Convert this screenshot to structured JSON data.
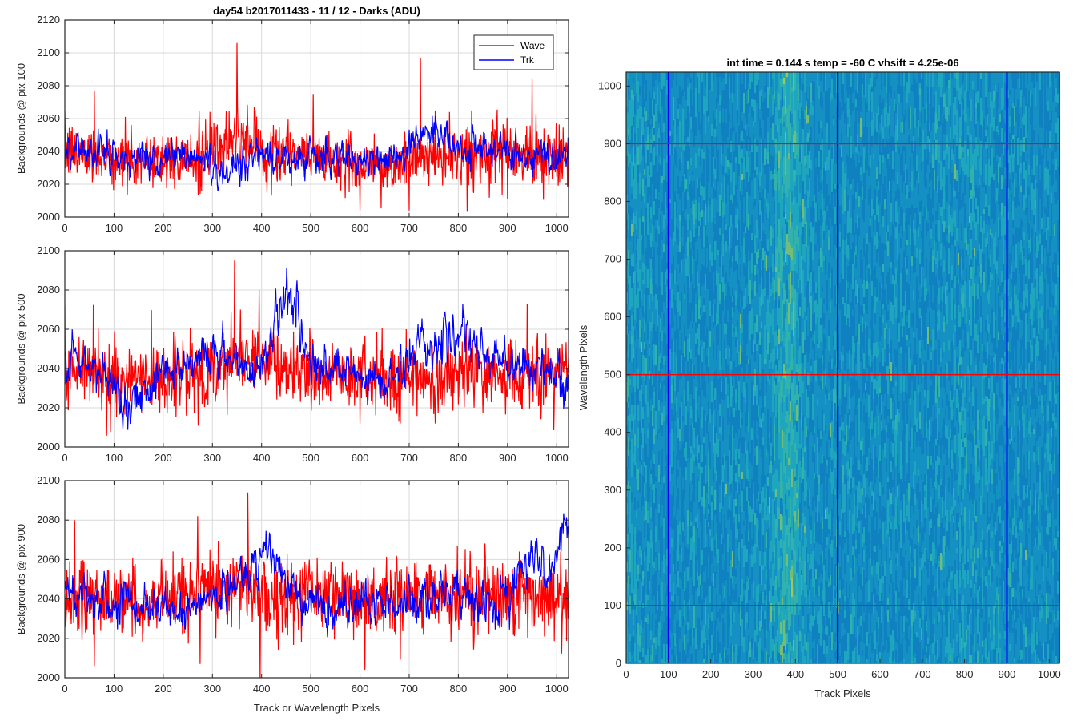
{
  "chart_data": [
    {
      "type": "line",
      "title": "day54 b2017011433 - 11 / 12 - Darks (ADU)",
      "xlabel": "",
      "ylabel": "Backgrounds @ pix 100",
      "xlim": [
        0,
        1024
      ],
      "ylim": [
        2000,
        2120
      ],
      "xticks": [
        0,
        100,
        200,
        300,
        400,
        500,
        600,
        700,
        800,
        900,
        1000
      ],
      "yticks": [
        2000,
        2020,
        2040,
        2060,
        2080,
        2100,
        2120
      ],
      "grid": true,
      "legend_position": "top-right",
      "series": [
        {
          "name": "Wave",
          "color": "#ff0000",
          "x": [
            0,
            40,
            80,
            120,
            160,
            200,
            240,
            280,
            320,
            345,
            355,
            380,
            420,
            460,
            500,
            540,
            580,
            620,
            660,
            700,
            720,
            740,
            780,
            820,
            860,
            900,
            940,
            980,
            1024
          ],
          "y": [
            2040,
            2038,
            2037,
            2035,
            2034,
            2036,
            2035,
            2037,
            2042,
            2045,
            2048,
            2044,
            2040,
            2038,
            2036,
            2035,
            2034,
            2032,
            2030,
            2034,
            2038,
            2036,
            2037,
            2038,
            2037,
            2038,
            2036,
            2037,
            2038
          ],
          "peaks": [
            [
              350,
              2106
            ],
            [
              723,
              2097
            ],
            [
              950,
              2084
            ],
            [
              60,
              2077
            ],
            [
              505,
              2075
            ],
            [
              600,
              2004
            ],
            [
              700,
              2004
            ]
          ]
        },
        {
          "name": "Trk",
          "color": "#0000ff",
          "x": [
            0,
            40,
            80,
            120,
            160,
            200,
            240,
            280,
            320,
            360,
            400,
            440,
            480,
            520,
            560,
            600,
            640,
            680,
            720,
            740,
            760,
            800,
            840,
            880,
            920,
            960,
            1000,
            1024
          ],
          "y": [
            2042,
            2040,
            2038,
            2037,
            2036,
            2037,
            2038,
            2035,
            2027,
            2032,
            2038,
            2037,
            2036,
            2037,
            2035,
            2036,
            2036,
            2037,
            2048,
            2055,
            2050,
            2042,
            2040,
            2040,
            2038,
            2036,
            2035,
            2040
          ]
        }
      ]
    },
    {
      "type": "line",
      "title": "",
      "xlabel": "",
      "ylabel": "Backgrounds @ pix 500",
      "xlim": [
        0,
        1024
      ],
      "ylim": [
        2000,
        2100
      ],
      "xticks": [
        0,
        100,
        200,
        300,
        400,
        500,
        600,
        700,
        800,
        900,
        1000
      ],
      "yticks": [
        2000,
        2020,
        2040,
        2060,
        2080,
        2100
      ],
      "grid": true,
      "series": [
        {
          "name": "Wave",
          "color": "#ff0000",
          "x": [
            0,
            40,
            80,
            120,
            160,
            200,
            240,
            280,
            320,
            345,
            360,
            400,
            440,
            480,
            520,
            560,
            600,
            640,
            680,
            720,
            760,
            800,
            840,
            880,
            920,
            960,
            1000,
            1024
          ],
          "y": [
            2040,
            2038,
            2036,
            2035,
            2035,
            2036,
            2036,
            2038,
            2042,
            2046,
            2048,
            2044,
            2040,
            2036,
            2036,
            2036,
            2034,
            2035,
            2034,
            2035,
            2036,
            2037,
            2037,
            2036,
            2037,
            2036,
            2037,
            2043
          ],
          "peaks": [
            [
              345,
              2095
            ],
            [
              395,
              2080
            ],
            [
              940,
              2073
            ],
            [
              0,
              2072
            ],
            [
              250,
              2027
            ],
            [
              600,
              2012
            ]
          ]
        },
        {
          "name": "Trk",
          "color": "#0000ff",
          "x": [
            0,
            40,
            80,
            120,
            140,
            160,
            200,
            240,
            280,
            320,
            360,
            400,
            440,
            450,
            470,
            500,
            540,
            580,
            620,
            660,
            700,
            720,
            760,
            800,
            840,
            880,
            920,
            960,
            1000,
            1024
          ],
          "y": [
            2045,
            2040,
            2036,
            2026,
            2020,
            2030,
            2040,
            2042,
            2048,
            2046,
            2040,
            2042,
            2072,
            2082,
            2070,
            2040,
            2038,
            2036,
            2034,
            2033,
            2045,
            2055,
            2052,
            2058,
            2048,
            2045,
            2043,
            2040,
            2035,
            2024
          ]
        }
      ]
    },
    {
      "type": "line",
      "title": "",
      "xlabel": "Track or Wavelength Pixels",
      "ylabel": "Backgrounds @ pix 900",
      "xlim": [
        0,
        1024
      ],
      "ylim": [
        2000,
        2100
      ],
      "xticks": [
        0,
        100,
        200,
        300,
        400,
        500,
        600,
        700,
        800,
        900,
        1000
      ],
      "yticks": [
        2000,
        2020,
        2040,
        2060,
        2080,
        2100
      ],
      "grid": true,
      "series": [
        {
          "name": "Wave",
          "color": "#ff0000",
          "x": [
            0,
            40,
            80,
            120,
            160,
            200,
            240,
            280,
            320,
            360,
            380,
            420,
            460,
            500,
            540,
            580,
            620,
            660,
            700,
            740,
            780,
            820,
            860,
            900,
            940,
            980,
            1024
          ],
          "y": [
            2040,
            2041,
            2040,
            2039,
            2038,
            2040,
            2042,
            2044,
            2046,
            2048,
            2046,
            2042,
            2040,
            2041,
            2040,
            2040,
            2039,
            2040,
            2040,
            2041,
            2041,
            2042,
            2041,
            2042,
            2041,
            2040,
            2041
          ],
          "peaks": [
            [
              372,
              2094
            ],
            [
              20,
              2080
            ],
            [
              270,
              2082
            ],
            [
              60,
              2006
            ],
            [
              275,
              2007
            ],
            [
              610,
              2004
            ]
          ]
        },
        {
          "name": "Trk",
          "color": "#0000ff",
          "x": [
            0,
            40,
            80,
            120,
            160,
            200,
            240,
            280,
            320,
            360,
            400,
            420,
            440,
            460,
            500,
            540,
            580,
            620,
            660,
            700,
            740,
            780,
            820,
            860,
            900,
            930,
            950,
            980,
            1010,
            1024
          ],
          "y": [
            2045,
            2040,
            2038,
            2037,
            2036,
            2036,
            2037,
            2038,
            2042,
            2050,
            2060,
            2066,
            2052,
            2040,
            2038,
            2036,
            2035,
            2036,
            2037,
            2040,
            2042,
            2044,
            2040,
            2038,
            2040,
            2055,
            2065,
            2048,
            2068,
            2075
          ]
        }
      ]
    },
    {
      "type": "heatmap",
      "title": "int time = 0.144 s   temp = -60 C   vhsift = 4.25e-06",
      "xlabel": "Track Pixels",
      "ylabel": "Wavelength Pixels",
      "xlim": [
        0,
        1024
      ],
      "ylim": [
        0,
        1024
      ],
      "xticks": [
        0,
        100,
        200,
        300,
        400,
        500,
        600,
        700,
        800,
        900,
        1000
      ],
      "yticks": [
        0,
        100,
        200,
        300,
        400,
        500,
        600,
        700,
        800,
        900,
        1000
      ],
      "colormap": [
        "#0f7fc0",
        "#1590c2",
        "#1ea8bc",
        "#35b6a8",
        "#7fc26e",
        "#b8c94a"
      ],
      "bright_band_center_x": 380,
      "vertical_lines": {
        "x": [
          100,
          500,
          900
        ],
        "color": "#0000ff"
      },
      "horizontal_lines": {
        "y": [
          100,
          500,
          900
        ],
        "color": "#ff0000"
      }
    }
  ]
}
